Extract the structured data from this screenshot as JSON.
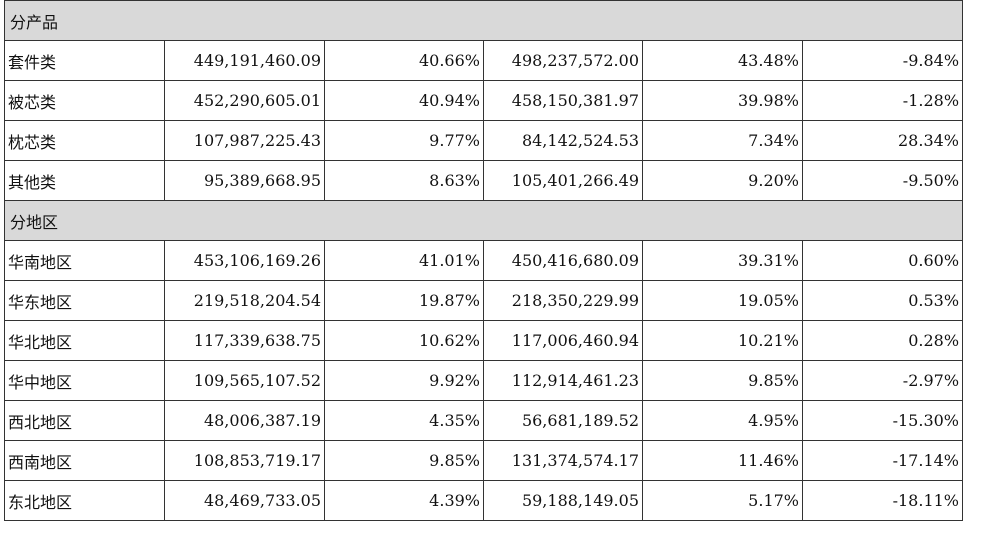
{
  "sections": [
    {
      "title": "分产品",
      "rows": [
        {
          "name": "套件类",
          "v1": "449,191,460.09",
          "p1": "40.66%",
          "v2": "498,237,572.00",
          "p2": "43.48%",
          "chg": "-9.84%"
        },
        {
          "name": "被芯类",
          "v1": "452,290,605.01",
          "p1": "40.94%",
          "v2": "458,150,381.97",
          "p2": "39.98%",
          "chg": "-1.28%"
        },
        {
          "name": "枕芯类",
          "v1": "107,987,225.43",
          "p1": "9.77%",
          "v2": "84,142,524.53",
          "p2": "7.34%",
          "chg": "28.34%"
        },
        {
          "name": "其他类",
          "v1": "95,389,668.95",
          "p1": "8.63%",
          "v2": "105,401,266.49",
          "p2": "9.20%",
          "chg": "-9.50%"
        }
      ]
    },
    {
      "title": "分地区",
      "rows": [
        {
          "name": "华南地区",
          "v1": "453,106,169.26",
          "p1": "41.01%",
          "v2": "450,416,680.09",
          "p2": "39.31%",
          "chg": "0.60%"
        },
        {
          "name": "华东地区",
          "v1": "219,518,204.54",
          "p1": "19.87%",
          "v2": "218,350,229.99",
          "p2": "19.05%",
          "chg": "0.53%"
        },
        {
          "name": "华北地区",
          "v1": "117,339,638.75",
          "p1": "10.62%",
          "v2": "117,006,460.94",
          "p2": "10.21%",
          "chg": "0.28%"
        },
        {
          "name": "华中地区",
          "v1": "109,565,107.52",
          "p1": "9.92%",
          "v2": "112,914,461.23",
          "p2": "9.85%",
          "chg": "-2.97%"
        },
        {
          "name": "西北地区",
          "v1": "48,006,387.19",
          "p1": "4.35%",
          "v2": "56,681,189.52",
          "p2": "4.95%",
          "chg": "-15.30%"
        },
        {
          "name": "西南地区",
          "v1": "108,853,719.17",
          "p1": "9.85%",
          "v2": "131,374,574.17",
          "p2": "11.46%",
          "chg": "-17.14%"
        },
        {
          "name": "东北地区",
          "v1": "48,469,733.05",
          "p1": "4.39%",
          "v2": "59,188,149.05",
          "p2": "5.17%",
          "chg": "-18.11%"
        }
      ]
    }
  ]
}
